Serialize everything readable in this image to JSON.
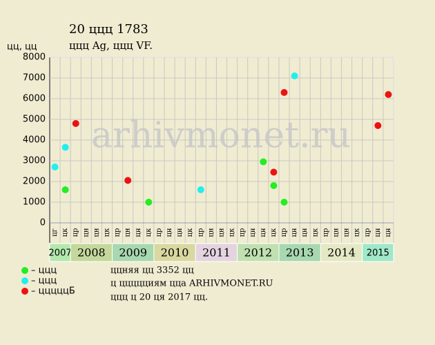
{
  "chart_data": {
    "type": "scatter",
    "title": "20 ццц 1783",
    "subtitle": "ццц Ag, ццц VF.",
    "y_label": "цц, цц",
    "watermark": "arhivmonet.ru",
    "footer": [
      "ццняя цц 3352 цц",
      "ц ццццциям цца ARHIVMONET.RU",
      "ццц ц 20 ця 2017 цц."
    ],
    "ylim": [
      0,
      8000
    ],
    "yticks": [
      0,
      1000,
      2000,
      3000,
      4000,
      5000,
      6000,
      7000,
      8000
    ],
    "grid": true,
    "categories": [
      "цг",
      "цк",
      "цр",
      "цн",
      "цн",
      "цк",
      "цр",
      "цн",
      "цн",
      "цк",
      "цр",
      "цн",
      "цн",
      "цк",
      "цр",
      "цн",
      "цн",
      "цк",
      "цр",
      "цн",
      "цн",
      "цк",
      "цр",
      "цн",
      "цн",
      "цк",
      "цр",
      "цн",
      "цн",
      "цк",
      "цр",
      "цн",
      "цн"
    ],
    "years": [
      "2007",
      "2008",
      "2009",
      "2010",
      "2011",
      "2012",
      "2013",
      "2014",
      "2015"
    ],
    "year_colors": [
      "#b4e8ac",
      "#c4d89c",
      "#a8d8b0",
      "#d8d8a0",
      "#e4d4e0",
      "#c0e0b0",
      "#a8d8b0",
      "#e4e8c4",
      "#a0e8c8"
    ],
    "series": [
      {
        "name": "– ццц",
        "color": "#22ee22",
        "values": [
          null,
          1600,
          null,
          null,
          null,
          null,
          null,
          null,
          null,
          1000,
          null,
          null,
          null,
          null,
          null,
          null,
          null,
          null,
          null,
          null,
          2950,
          1800,
          1000,
          null,
          null,
          null,
          null,
          null,
          null,
          null,
          null,
          null,
          null
        ]
      },
      {
        "name": "– ццц",
        "color": "#22eeee",
        "values": [
          2700,
          3650,
          null,
          null,
          null,
          null,
          null,
          null,
          null,
          null,
          null,
          null,
          null,
          null,
          1600,
          null,
          null,
          null,
          null,
          null,
          null,
          null,
          null,
          7100,
          null,
          null,
          null,
          null,
          null,
          null,
          null,
          null,
          null
        ]
      },
      {
        "name": "– цццццБ",
        "color": "#ee1111",
        "values": [
          null,
          null,
          4800,
          null,
          null,
          null,
          null,
          2050,
          null,
          null,
          null,
          null,
          null,
          null,
          null,
          null,
          null,
          null,
          null,
          null,
          null,
          2450,
          6300,
          null,
          null,
          null,
          null,
          null,
          null,
          null,
          null,
          4700,
          6200
        ]
      }
    ]
  }
}
